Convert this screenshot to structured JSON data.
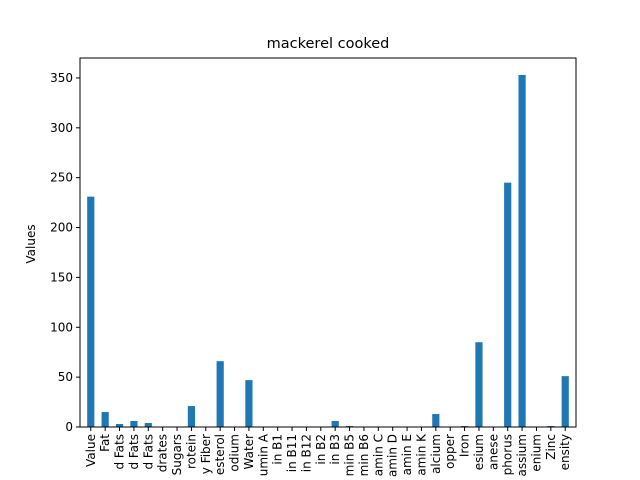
{
  "chart_data": {
    "type": "bar",
    "title": "mackerel cooked",
    "xlabel": "",
    "ylabel": "Values",
    "ylim": [
      0,
      370
    ],
    "yticks": [
      0,
      50,
      100,
      150,
      200,
      250,
      300,
      350
    ],
    "grid": false,
    "legend": "none",
    "bar_color": "#1f77b4",
    "categories": [
      "Value",
      "Fat",
      "d Fats",
      "d Fats",
      "d Fats",
      "drates",
      "Sugars",
      "rotein",
      "y Fiber",
      "esterol",
      "odium",
      "Water",
      "umin A",
      "in B1",
      "in B11",
      "in B12",
      "in B2",
      "in B3",
      "min B5",
      "min B6",
      "amin C",
      "amin D",
      "amin E",
      "amin K",
      "alcium",
      "opper",
      "Iron",
      "esium",
      "anese",
      "phorus",
      "assium",
      "enium",
      "Zinc",
      "ensity"
    ],
    "values": [
      231,
      15,
      3,
      6,
      4,
      0,
      0,
      21,
      0,
      66,
      0,
      47,
      0,
      0,
      0,
      0,
      0,
      6,
      1,
      0,
      0,
      0,
      0,
      0,
      13,
      0,
      1,
      85,
      0,
      245,
      353,
      0,
      1,
      51
    ]
  }
}
